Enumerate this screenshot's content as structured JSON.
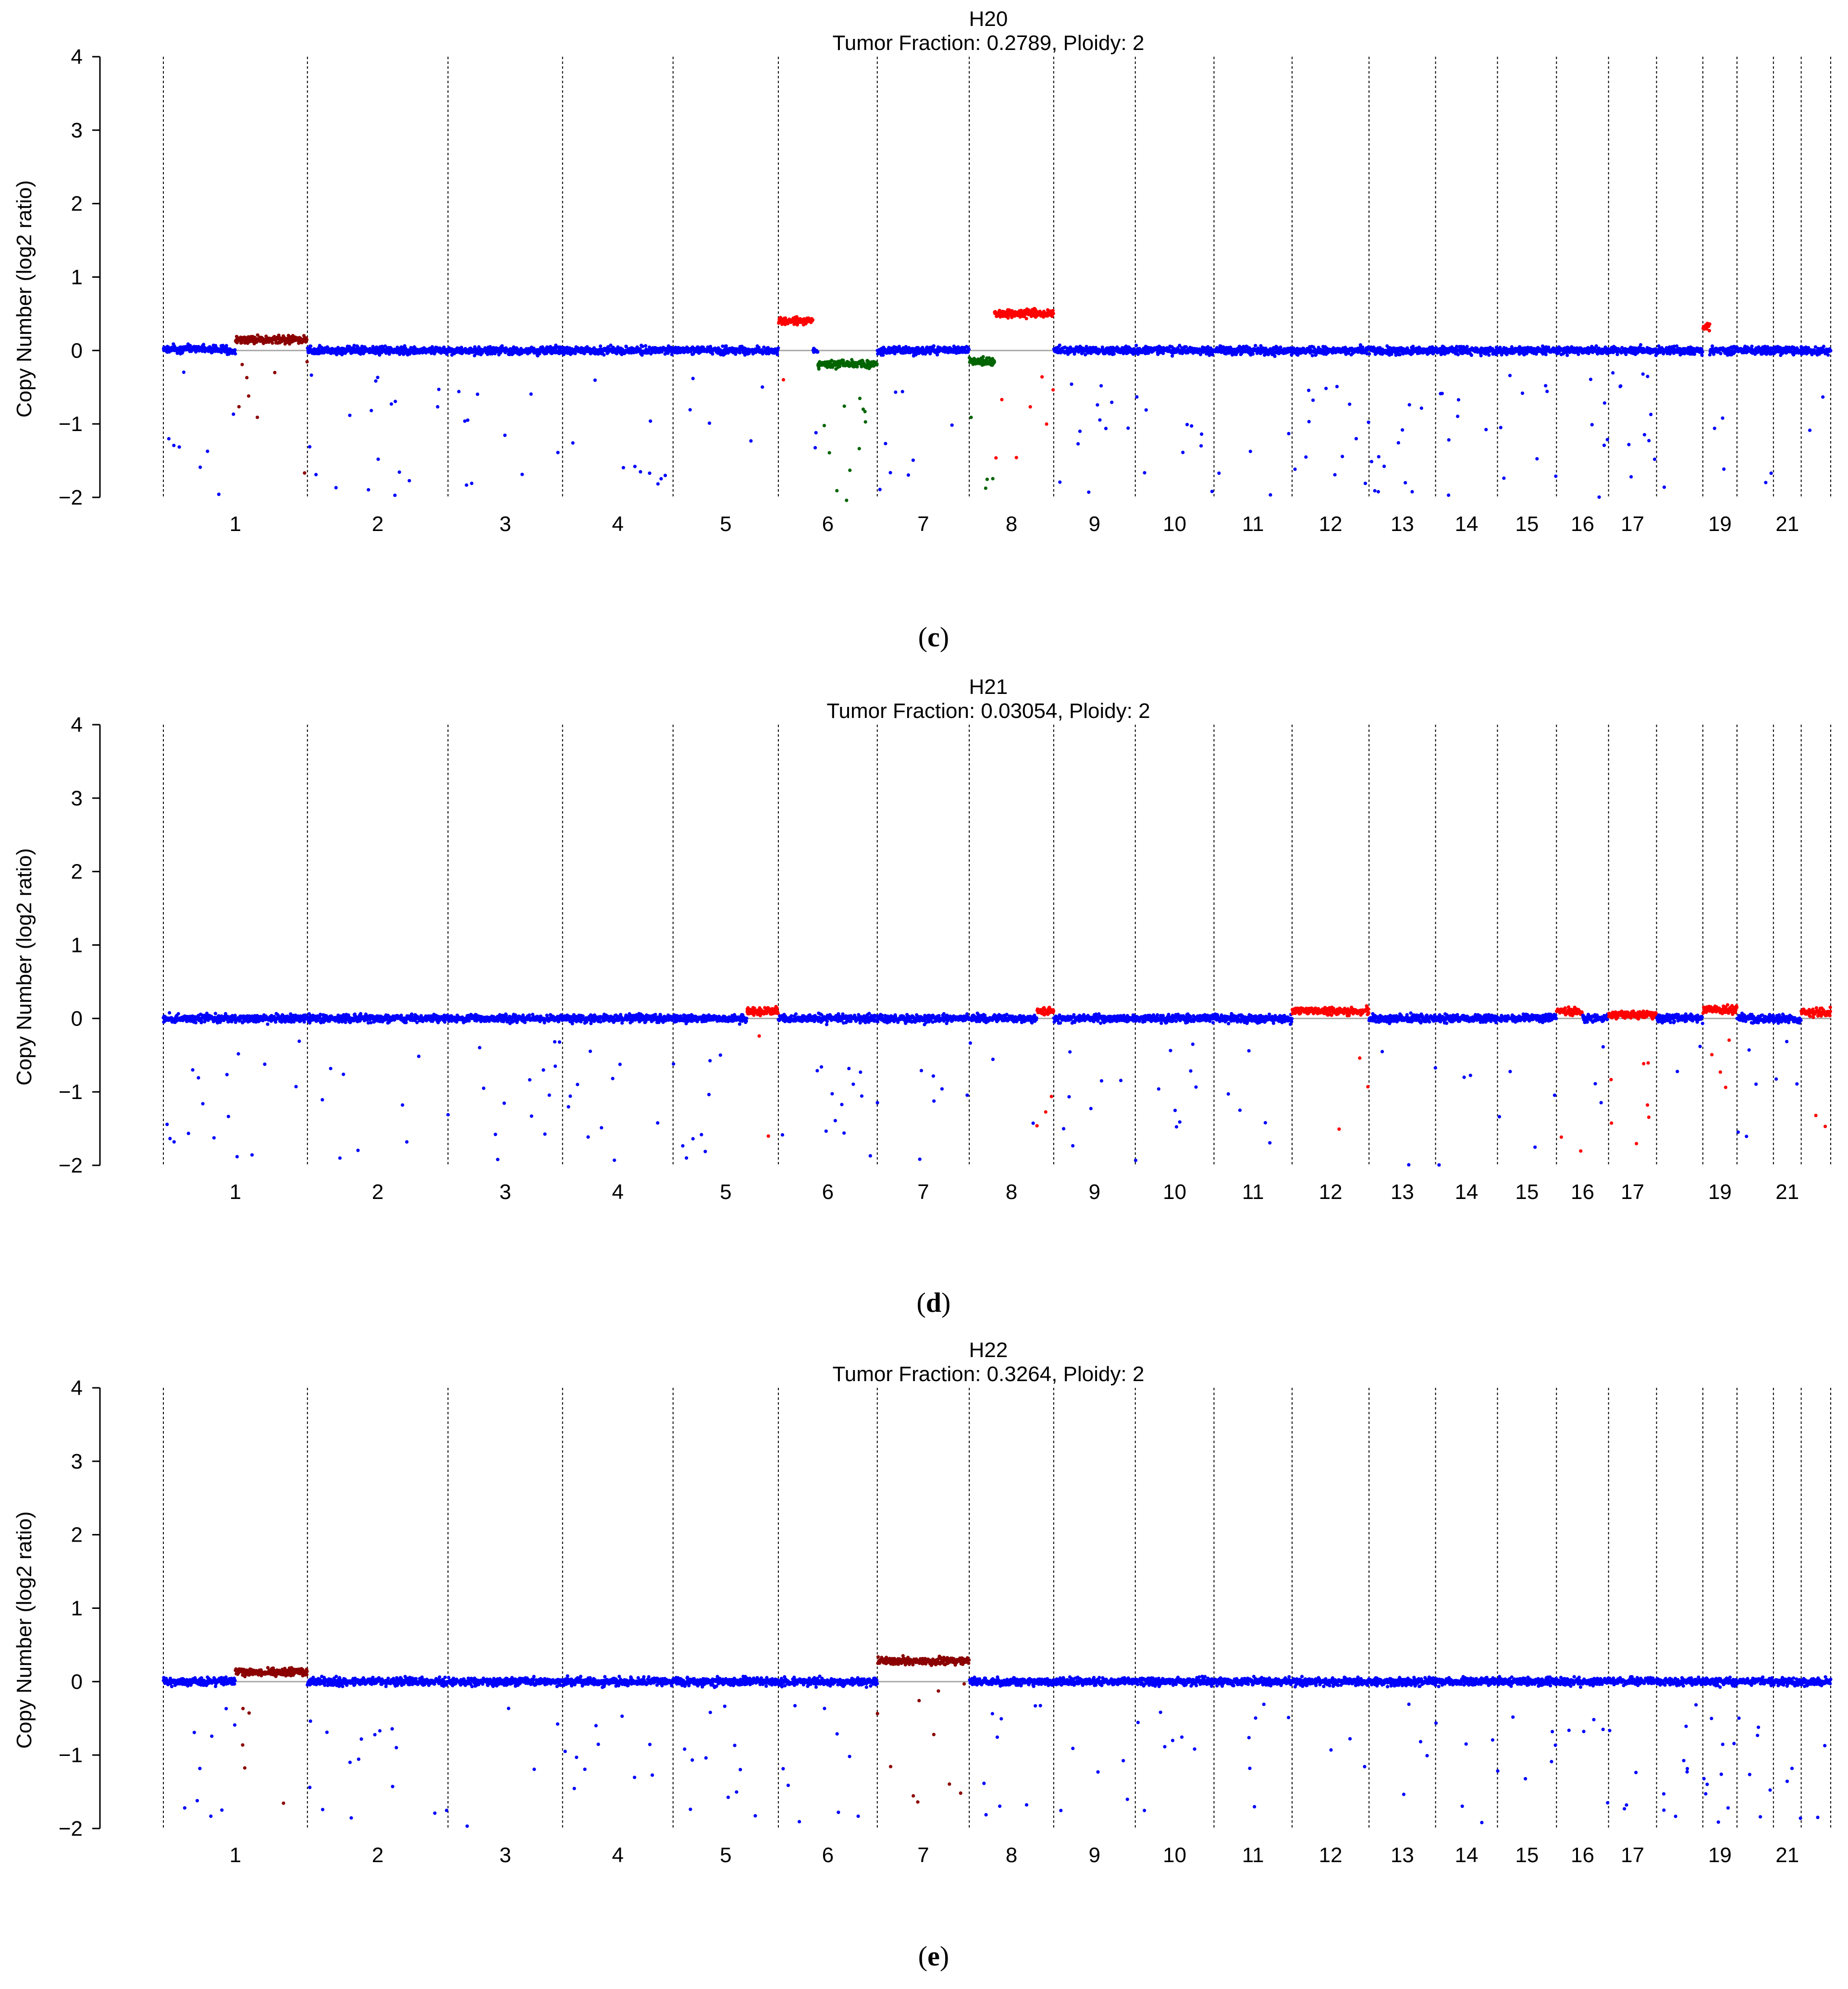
{
  "chart_data": [
    {
      "type": "scatter",
      "sample": "H20",
      "subtitle": "Tumor Fraction: 0.2789, Ploidy: 2",
      "panel_label": "c",
      "ylabel": "Copy Number (log2 ratio)",
      "ylim": [
        -2,
        4
      ],
      "yticks": [
        "4",
        "3",
        "2",
        "1",
        "0",
        "−1",
        "−2"
      ],
      "x_tick_labels": [
        "1",
        "2",
        "3",
        "4",
        "5",
        "6",
        "7",
        "8",
        "9",
        "10",
        "11",
        "12",
        "13",
        "14",
        "15",
        "16",
        "17",
        "19",
        "21"
      ],
      "chromosome_labels_positions": [
        1,
        2,
        3,
        4,
        5,
        6,
        7,
        8,
        9,
        10,
        11,
        12,
        13,
        14,
        15,
        16,
        17,
        19,
        21
      ],
      "segments": [
        {
          "chr": 1,
          "start": 0.0,
          "end": 0.45,
          "level": 0.02,
          "state": "neutral"
        },
        {
          "chr": 1,
          "start": 0.5,
          "end": 1.0,
          "level": 0.15,
          "state": "gain"
        },
        {
          "chr": 6,
          "start": 0.0,
          "end": 0.35,
          "level": 0.4,
          "state": "amp"
        },
        {
          "chr": 6,
          "start": 0.4,
          "end": 1.0,
          "level": -0.18,
          "state": "loss"
        },
        {
          "chr": 8,
          "start": 0.0,
          "end": 0.3,
          "level": -0.15,
          "state": "loss"
        },
        {
          "chr": 8,
          "start": 0.3,
          "end": 1.0,
          "level": 0.5,
          "state": "amp"
        },
        {
          "chr": 19,
          "start": 0.0,
          "end": 0.2,
          "level": 0.32,
          "state": "amp"
        }
      ],
      "colors": {
        "neutral": "#0000ff",
        "gain": "#8b0000",
        "amp": "#ff0000",
        "loss": "#006400",
        "hetloss": "#00dd00"
      }
    },
    {
      "type": "scatter",
      "sample": "H21",
      "subtitle": "Tumor Fraction: 0.03054, Ploidy: 2",
      "panel_label": "d",
      "ylabel": "Copy Number (log2 ratio)",
      "ylim": [
        -2,
        4
      ],
      "yticks": [
        "4",
        "3",
        "2",
        "1",
        "0",
        "−1",
        "−2"
      ],
      "x_tick_labels": [
        "1",
        "2",
        "3",
        "4",
        "5",
        "6",
        "7",
        "8",
        "9",
        "10",
        "11",
        "12",
        "13",
        "14",
        "15",
        "16",
        "17",
        "19",
        "21"
      ],
      "chromosome_labels_positions": [
        1,
        2,
        3,
        4,
        5,
        6,
        7,
        8,
        9,
        10,
        11,
        12,
        13,
        14,
        15,
        16,
        17,
        19,
        21
      ],
      "segments": [
        {
          "chr": 5,
          "start": 0.7,
          "end": 1.0,
          "level": 0.1,
          "state": "amp"
        },
        {
          "chr": 8,
          "start": 0.8,
          "end": 1.0,
          "level": 0.1,
          "state": "amp"
        },
        {
          "chr": 12,
          "start": 0.0,
          "end": 1.0,
          "level": 0.1,
          "state": "amp"
        },
        {
          "chr": 16,
          "start": 0.0,
          "end": 0.5,
          "level": 0.1,
          "state": "amp"
        },
        {
          "chr": 17,
          "start": 0.0,
          "end": 1.0,
          "level": 0.05,
          "state": "amp"
        },
        {
          "chr": 19,
          "start": 0.0,
          "end": 1.0,
          "level": 0.12,
          "state": "amp"
        },
        {
          "chr": 22,
          "start": 0.0,
          "end": 1.0,
          "level": 0.08,
          "state": "amp"
        }
      ],
      "colors": {
        "neutral": "#0000ff",
        "gain": "#8b0000",
        "amp": "#ff0000",
        "loss": "#006400",
        "hetloss": "#00dd00"
      }
    },
    {
      "type": "scatter",
      "sample": "H22",
      "subtitle": "Tumor Fraction: 0.3264, Ploidy: 2",
      "panel_label": "e",
      "ylabel": "Copy Number (log2 ratio)",
      "ylim": [
        -2,
        4
      ],
      "yticks": [
        "4",
        "3",
        "2",
        "1",
        "0",
        "−1",
        "−2"
      ],
      "x_tick_labels": [
        "1",
        "2",
        "3",
        "4",
        "5",
        "6",
        "7",
        "8",
        "9",
        "10",
        "11",
        "12",
        "13",
        "14",
        "15",
        "16",
        "17",
        "19",
        "21"
      ],
      "chromosome_labels_positions": [
        1,
        2,
        3,
        4,
        5,
        6,
        7,
        8,
        9,
        10,
        11,
        12,
        13,
        14,
        15,
        16,
        17,
        19,
        21
      ],
      "segments": [
        {
          "chr": 1,
          "start": 0.5,
          "end": 1.0,
          "level": 0.13,
          "state": "gain"
        },
        {
          "chr": 7,
          "start": 0.0,
          "end": 1.0,
          "level": 0.28,
          "state": "gain"
        }
      ],
      "colors": {
        "neutral": "#0000ff",
        "gain": "#8b0000",
        "amp": "#ff0000",
        "loss": "#006400",
        "hetloss": "#00dd00"
      }
    }
  ]
}
